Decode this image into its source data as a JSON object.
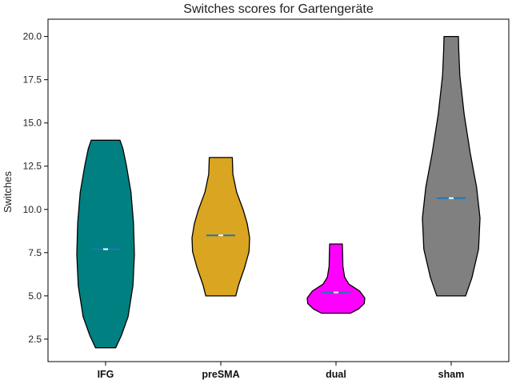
{
  "chart_data": {
    "type": "violin",
    "title": "Switches scores for Gartengeräte",
    "xlabel": "",
    "ylabel": "Switches",
    "ylim": [
      1.2,
      21.0
    ],
    "yticks": [
      "2.5",
      "5.0",
      "7.5",
      "10.0",
      "12.5",
      "15.0",
      "17.5",
      "20.0"
    ],
    "categories": [
      "IFG",
      "preSMA",
      "dual",
      "sham"
    ],
    "grid": false,
    "colors": [
      "#008080",
      "#DAA520",
      "#FF00FF",
      "#808080"
    ],
    "median_line_color": "#1f77b4",
    "series": [
      {
        "min": 2,
        "max": 14,
        "median": 7.7
      },
      {
        "min": 5,
        "max": 13,
        "median": 8.5
      },
      {
        "min": 4,
        "max": 8,
        "median": 5.2
      },
      {
        "min": 5,
        "max": 20,
        "median": 10.65
      }
    ]
  }
}
